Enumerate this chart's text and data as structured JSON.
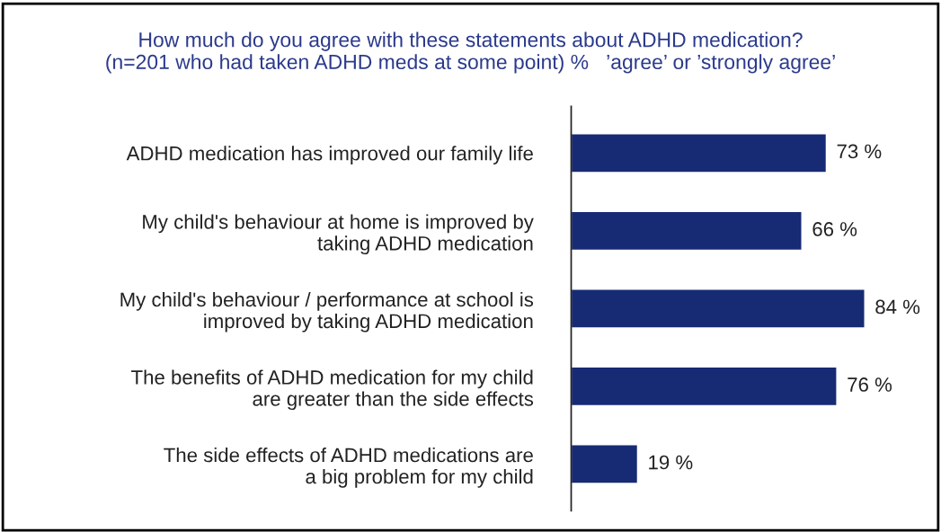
{
  "chart_data": {
    "type": "bar",
    "orientation": "horizontal",
    "title": "How much do you agree with these statements about ADHD medication?\n(n=201 who had taken ADHD meds at some point) %   ’agree’ or ’strongly agree’",
    "categories": [
      "ADHD medication has improved our family life",
      "My child's behaviour at home is improved by\ntaking ADHD medication",
      "My child's behaviour / performance at school is\nimproved by taking ADHD medication",
      "The benefits of ADHD medication for my child\nare greater than the side effects",
      "The side effects of ADHD medications are\na big problem for my child"
    ],
    "values": [
      73,
      66,
      84,
      76,
      19
    ],
    "value_labels": [
      "73 %",
      "66 %",
      "84 %",
      "76 %",
      "19 %"
    ],
    "color": "#172a74",
    "grid": false,
    "legend": false
  }
}
